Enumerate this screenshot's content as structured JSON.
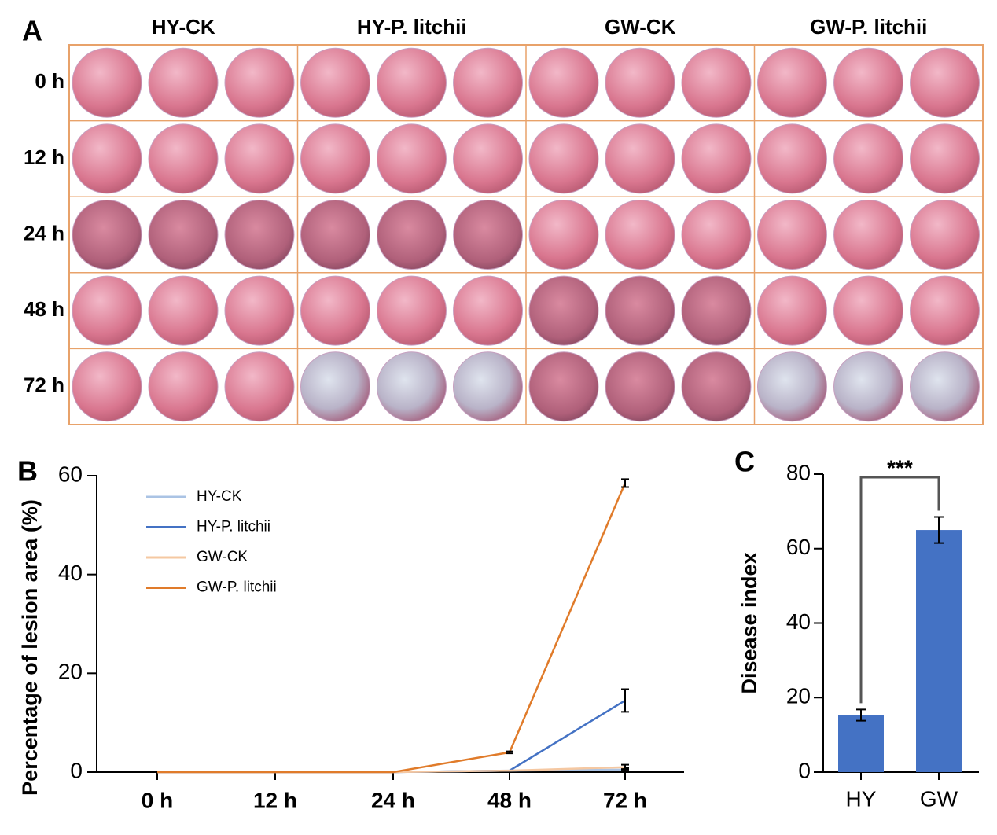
{
  "photo_grid": {
    "panel_label": "A",
    "columns": [
      "HY-CK",
      "HY-P. litchii",
      "GW-CK",
      "GW-P. litchii"
    ],
    "rows": [
      "0 h",
      "12 h",
      "24 h",
      "48 h",
      "72 h"
    ]
  },
  "chart_data": [
    {
      "type": "line",
      "panel_label": "B",
      "y_label": "Percentage of lesion area (%)",
      "categories": [
        "0 h",
        "12 h",
        "24 h",
        "48 h",
        "72 h"
      ],
      "ylim": [
        0,
        60
      ],
      "yticks": [
        0,
        20,
        40,
        60
      ],
      "series": [
        {
          "name": "HY-CK",
          "color": "#aac3e4",
          "values": [
            0,
            0,
            0,
            0.3,
            0.5
          ],
          "errors": [
            0,
            0,
            0,
            0,
            0.3
          ]
        },
        {
          "name": "HY-P. litchii",
          "color": "#4472c4",
          "values": [
            0,
            0,
            0,
            0.3,
            14.5
          ],
          "errors": [
            0,
            0,
            0,
            0,
            2.3
          ]
        },
        {
          "name": "GW-CK",
          "color": "#f5c8a2",
          "values": [
            0,
            0,
            0,
            0.3,
            1.0
          ],
          "errors": [
            0,
            0,
            0,
            0,
            0.5
          ]
        },
        {
          "name": "GW-P. litchii",
          "color": "#e07b2a",
          "values": [
            0,
            0,
            0,
            4,
            58.5
          ],
          "errors": [
            0,
            0,
            0,
            0.2,
            0.8
          ]
        }
      ]
    },
    {
      "type": "bar",
      "panel_label": "C",
      "y_label": "Disease index",
      "categories": [
        "HY",
        "GW"
      ],
      "values": [
        15.3,
        65
      ],
      "errors": [
        1.5,
        3.5
      ],
      "color": "#4472c4",
      "ylim": [
        0,
        80
      ],
      "yticks": [
        0,
        20,
        40,
        60,
        80
      ],
      "annotation": "***"
    }
  ]
}
